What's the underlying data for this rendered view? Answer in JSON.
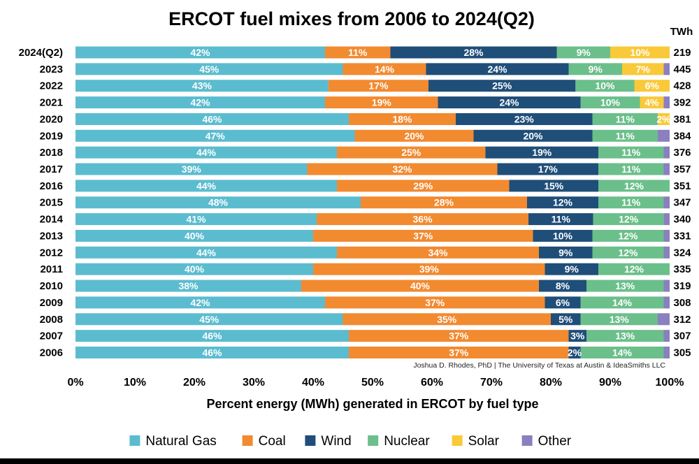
{
  "chart_data": {
    "type": "bar",
    "orientation": "horizontal",
    "stacked": true,
    "title": "ERCOT fuel mixes from 2006 to 2024(Q2)",
    "xlabel": "Percent energy (MWh) generated in ERCOT by fuel type",
    "ylabel": "",
    "xlim": [
      0,
      100
    ],
    "x_ticks": [
      "0%",
      "10%",
      "20%",
      "30%",
      "40%",
      "50%",
      "60%",
      "70%",
      "80%",
      "90%",
      "100%"
    ],
    "total_header": "TWh",
    "credit": "Joshua D. Rhodes, PhD | The University of Texas at Austin & IdeaSmiths LLC",
    "legend_position": "bottom",
    "categories": [
      "2024(Q2)",
      "2023",
      "2022",
      "2021",
      "2020",
      "2019",
      "2018",
      "2017",
      "2016",
      "2015",
      "2014",
      "2013",
      "2012",
      "2011",
      "2010",
      "2009",
      "2008",
      "2007",
      "2006"
    ],
    "totals_twh": [
      219,
      445,
      428,
      392,
      381,
      384,
      376,
      357,
      351,
      347,
      340,
      331,
      324,
      335,
      319,
      308,
      312,
      307,
      305
    ],
    "series": [
      {
        "name": "Natural Gas",
        "color": "#5bbccf",
        "values": [
          42,
          45,
          43,
          42,
          46,
          47,
          44,
          39,
          44,
          48,
          41,
          40,
          44,
          40,
          38,
          42,
          45,
          46,
          46
        ]
      },
      {
        "name": "Coal",
        "color": "#f28a30",
        "values": [
          11,
          14,
          17,
          19,
          18,
          20,
          25,
          32,
          29,
          28,
          36,
          37,
          34,
          39,
          40,
          37,
          35,
          37,
          37
        ]
      },
      {
        "name": "Wind",
        "color": "#1f4e79",
        "values": [
          28,
          24,
          25,
          24,
          23,
          20,
          19,
          17,
          15,
          12,
          11,
          10,
          9,
          9,
          8,
          6,
          5,
          3,
          2
        ]
      },
      {
        "name": "Nuclear",
        "color": "#6bbf8a",
        "values": [
          9,
          9,
          10,
          10,
          11,
          11,
          11,
          11,
          12,
          11,
          12,
          12,
          12,
          12,
          13,
          14,
          13,
          13,
          14
        ]
      },
      {
        "name": "Solar",
        "color": "#f9c93a",
        "values": [
          10,
          7,
          6,
          4,
          2,
          0,
          0,
          0,
          0,
          0,
          0,
          0,
          0,
          0,
          0,
          0,
          0,
          0,
          0
        ]
      },
      {
        "name": "Other",
        "color": "#8a7fbf",
        "values": [
          0,
          1,
          0,
          1,
          0,
          2,
          1,
          1,
          0,
          1,
          1,
          1,
          1,
          0,
          1,
          1,
          2,
          1,
          1
        ]
      }
    ],
    "data_labels": [
      [
        "42%",
        "11%",
        "28%",
        "9%",
        "10%",
        ""
      ],
      [
        "45%",
        "14%",
        "24%",
        "9%",
        "7%",
        ""
      ],
      [
        "43%",
        "17%",
        "25%",
        "10%",
        "6%",
        ""
      ],
      [
        "42%",
        "19%",
        "24%",
        "10%",
        "4%",
        ""
      ],
      [
        "46%",
        "18%",
        "23%",
        "11%",
        "2%",
        ""
      ],
      [
        "47%",
        "20%",
        "20%",
        "11%",
        "",
        ""
      ],
      [
        "44%",
        "25%",
        "19%",
        "11%",
        "",
        ""
      ],
      [
        "39%",
        "32%",
        "17%",
        "11%",
        "",
        ""
      ],
      [
        "44%",
        "29%",
        "15%",
        "12%",
        "",
        ""
      ],
      [
        "48%",
        "28%",
        "12%",
        "11%",
        "",
        ""
      ],
      [
        "41%",
        "36%",
        "11%",
        "12%",
        "",
        ""
      ],
      [
        "40%",
        "37%",
        "10%",
        "12%",
        "",
        ""
      ],
      [
        "44%",
        "34%",
        "9%",
        "12%",
        "",
        ""
      ],
      [
        "40%",
        "39%",
        "9%",
        "12%",
        "",
        ""
      ],
      [
        "38%",
        "40%",
        "8%",
        "13%",
        "",
        ""
      ],
      [
        "42%",
        "37%",
        "6%",
        "14%",
        "",
        ""
      ],
      [
        "45%",
        "35%",
        "5%",
        "13%",
        "",
        ""
      ],
      [
        "46%",
        "37%",
        "3%",
        "13%",
        "",
        ""
      ],
      [
        "46%",
        "37%",
        "2%",
        "14%",
        "",
        ""
      ]
    ]
  }
}
